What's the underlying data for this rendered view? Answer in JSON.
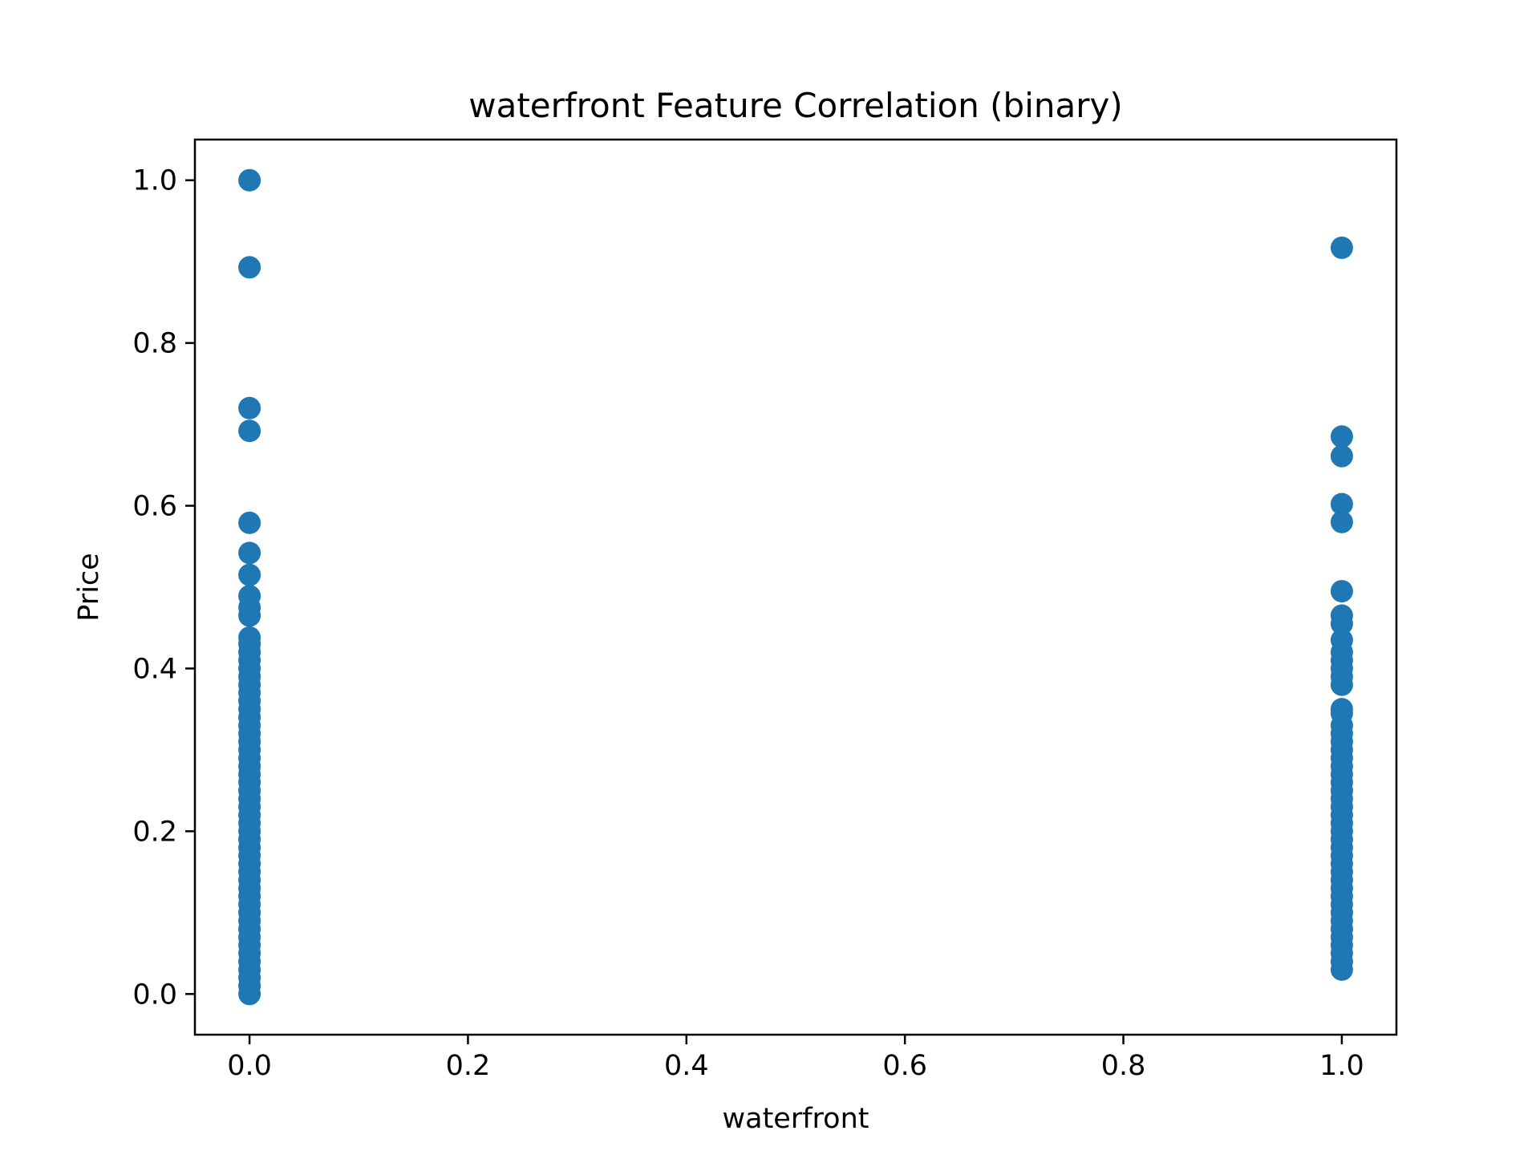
{
  "chart_data": {
    "type": "scatter",
    "title": "waterfront Feature Correlation (binary)",
    "xlabel": "waterfront",
    "ylabel": "Price",
    "xlim": [
      -0.05,
      1.05
    ],
    "ylim": [
      -0.05,
      1.05
    ],
    "grid": false,
    "legend": "none",
    "marker_color": "#1f77b4",
    "x_ticks": [
      0.0,
      0.2,
      0.4,
      0.6,
      0.8,
      1.0
    ],
    "x_tick_labels": [
      "0.0",
      "0.2",
      "0.4",
      "0.6",
      "0.8",
      "1.0"
    ],
    "y_ticks": [
      0.0,
      0.2,
      0.4,
      0.6,
      0.8,
      1.0
    ],
    "y_tick_labels": [
      "0.0",
      "0.2",
      "0.4",
      "0.6",
      "0.8",
      "1.0"
    ],
    "series": [
      {
        "x": 0,
        "y": [
          1.0,
          0.893,
          0.72,
          0.692,
          0.579,
          0.542,
          0.515,
          0.489,
          0.475,
          0.465,
          0.438,
          0.43,
          0.42,
          0.41,
          0.4,
          0.39,
          0.38,
          0.37,
          0.36,
          0.35,
          0.34,
          0.33,
          0.32,
          0.31,
          0.3,
          0.29,
          0.28,
          0.27,
          0.26,
          0.25,
          0.24,
          0.23,
          0.22,
          0.21,
          0.2,
          0.19,
          0.18,
          0.17,
          0.16,
          0.15,
          0.14,
          0.13,
          0.12,
          0.11,
          0.1,
          0.09,
          0.08,
          0.07,
          0.06,
          0.05,
          0.04,
          0.03,
          0.02,
          0.01,
          0.0
        ]
      },
      {
        "x": 1,
        "y": [
          0.917,
          0.685,
          0.661,
          0.602,
          0.58,
          0.495,
          0.465,
          0.455,
          0.435,
          0.42,
          0.41,
          0.4,
          0.39,
          0.38,
          0.35,
          0.345,
          0.33,
          0.32,
          0.31,
          0.3,
          0.29,
          0.28,
          0.27,
          0.26,
          0.25,
          0.24,
          0.23,
          0.22,
          0.21,
          0.2,
          0.19,
          0.18,
          0.17,
          0.16,
          0.15,
          0.14,
          0.13,
          0.12,
          0.11,
          0.1,
          0.09,
          0.08,
          0.07,
          0.06,
          0.05,
          0.04,
          0.03
        ]
      }
    ]
  }
}
